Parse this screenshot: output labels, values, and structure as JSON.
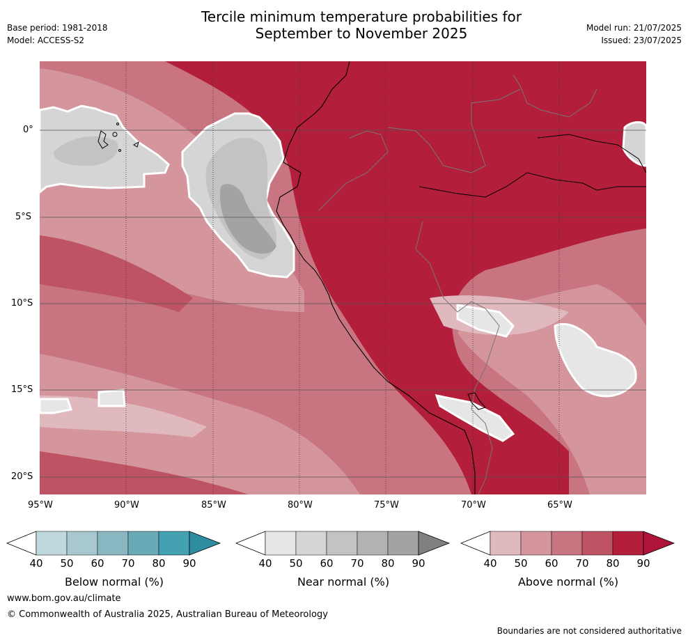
{
  "header": {
    "title_line1": "Tercile minimum temperature probabilities for",
    "title_line2": "September to November 2025",
    "base_period": "Base period: 1981-2018",
    "model": "Model: ACCESS-S2",
    "model_run": "Model run: 21/07/2025",
    "issued": "Issued: 23/07/2025"
  },
  "map": {
    "lat_labels": [
      "0°",
      "5°S",
      "10°S",
      "15°S",
      "20°S"
    ],
    "lon_labels": [
      "95°W",
      "90°W",
      "85°W",
      "80°W",
      "75°W",
      "70°W",
      "65°W"
    ],
    "colors": {
      "above": [
        "#e0b9be",
        "#d4959c",
        "#c97581",
        "#be5364",
        "#b31e3a"
      ],
      "near": [
        "#e6e6e6",
        "#d5d5d5",
        "#c3c3c3",
        "#b2b2b2",
        "#a3a3a3"
      ],
      "below": [
        "#bfd8de",
        "#a8c8cf",
        "#88b7c2",
        "#6aaab6",
        "#44a1b1"
      ]
    }
  },
  "colorbars": {
    "ticks": [
      "40",
      "50",
      "60",
      "70",
      "80",
      "90"
    ],
    "below": {
      "label": "Below normal (%)",
      "colors": [
        "#ffffff",
        "#bfd8de",
        "#a8c8cf",
        "#88b7c2",
        "#6aaab6",
        "#44a1b1",
        "#2e8d9e"
      ]
    },
    "near": {
      "label": "Near normal (%)",
      "colors": [
        "#ffffff",
        "#e6e6e6",
        "#d5d5d5",
        "#c3c3c3",
        "#b2b2b2",
        "#a3a3a3",
        "#808080"
      ]
    },
    "above": {
      "label": "Above normal (%)",
      "colors": [
        "#ffffff",
        "#e0b9be",
        "#d4959c",
        "#c97581",
        "#be5364",
        "#b31e3a",
        "#b0133a"
      ]
    }
  },
  "footer": {
    "website": "www.bom.gov.au/climate",
    "copyright": "© Commonwealth of Australia 2025, Australian Bureau of Meteorology",
    "disclaimer": "Boundaries are not considered authoritative"
  }
}
